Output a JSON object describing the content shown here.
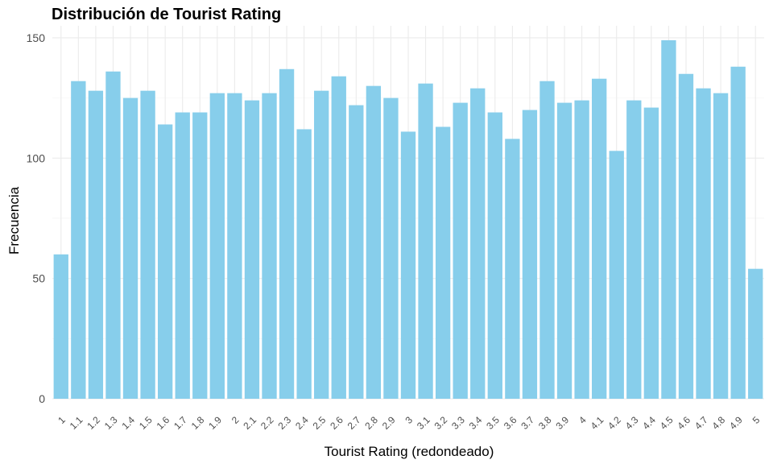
{
  "chart_data": {
    "type": "bar",
    "title": "Distribución de Tourist Rating",
    "xlabel": "Tourist Rating (redondeado)",
    "ylabel": "Frecuencia",
    "categories": [
      "1",
      "1.1",
      "1.2",
      "1.3",
      "1.4",
      "1.5",
      "1.6",
      "1.7",
      "1.8",
      "1.9",
      "2",
      "2.1",
      "2.2",
      "2.3",
      "2.4",
      "2.5",
      "2.6",
      "2.7",
      "2.8",
      "2.9",
      "3",
      "3.1",
      "3.2",
      "3.3",
      "3.4",
      "3.5",
      "3.6",
      "3.7",
      "3.8",
      "3.9",
      "4",
      "4.1",
      "4.2",
      "4.3",
      "4.4",
      "4.5",
      "4.6",
      "4.7",
      "4.8",
      "4.9",
      "5"
    ],
    "values": [
      60,
      132,
      128,
      136,
      125,
      128,
      114,
      119,
      119,
      127,
      127,
      124,
      127,
      137,
      112,
      128,
      134,
      122,
      130,
      125,
      111,
      131,
      113,
      123,
      129,
      119,
      108,
      120,
      132,
      123,
      124,
      133,
      103,
      124,
      121,
      149,
      135,
      129,
      127,
      138,
      54
    ],
    "yticks": [
      0,
      50,
      100,
      150
    ],
    "ylim": [
      0,
      155
    ],
    "bar_color": "#87CEEB",
    "grid": true,
    "legend": "none"
  }
}
